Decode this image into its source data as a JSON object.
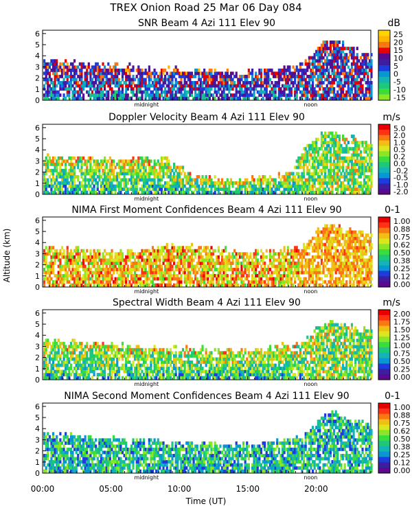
{
  "figure": {
    "header": "TREX Onion Road  25 Mar 06 Day 084",
    "y_axis_label": "Altitude (km)",
    "x_axis_label": "Time (UT)",
    "x_ticks": [
      "00:00",
      "05:00",
      "10:00",
      "15:00",
      "20:00"
    ],
    "midnight_label": "midnight",
    "noon_label": "noon"
  },
  "colors": {
    "panel_palette": [
      "#5a0a8c",
      "#3c1ea0",
      "#1e3cdc",
      "#0a96d2",
      "#14b4b4",
      "#1ec878",
      "#3cdc3c",
      "#8ce628",
      "#dce61e",
      "#f0be14",
      "#fa7814",
      "#ff3214",
      "#e60000"
    ],
    "snr_palette": [
      "#8ce628",
      "#3cdc3c",
      "#1ec878",
      "#14b4b4",
      "#0a96d2",
      "#1e3cdc",
      "#3c1ea0",
      "#5a0a8c",
      "#e60000",
      "#fa7814",
      "#ffb400",
      "#ffd200"
    ]
  },
  "chart_data": [
    {
      "type": "heatmap",
      "title": "SNR Beam 4 Azi 111 Elev 90",
      "unit": "dB",
      "xlabel": "Time (UT)",
      "ylabel": "Altitude (km)",
      "xlim": [
        0,
        24
      ],
      "ylim": [
        0,
        6.3
      ],
      "y_ticks": [
        "0",
        "1",
        "2",
        "3",
        "4",
        "5",
        "6"
      ],
      "colorbar_ticks": [
        "25",
        "20",
        "15",
        "10",
        "5",
        "0",
        "-5",
        "-10",
        "-15"
      ],
      "layer_top_km": [
        [
          0,
          3.4
        ],
        [
          5,
          3.0
        ],
        [
          10,
          2.6
        ],
        [
          15,
          2.4
        ],
        [
          19,
          3.0
        ],
        [
          20,
          4.5
        ],
        [
          21,
          5.5
        ],
        [
          24,
          4.0
        ]
      ]
    },
    {
      "type": "heatmap",
      "title": "Doppler Velocity Beam 4 Azi 111 Elev 90",
      "unit": "m/s",
      "xlabel": "Time (UT)",
      "ylabel": "Altitude (km)",
      "xlim": [
        0,
        24
      ],
      "ylim": [
        0,
        6.3
      ],
      "y_ticks": [
        "0",
        "1",
        "2",
        "3",
        "4",
        "5",
        "6"
      ],
      "colorbar_ticks": [
        "5.0",
        "2.0",
        "1.0",
        "0.5",
        "0.2",
        "0.0",
        "-0.2",
        "-0.5",
        "-1.0",
        "-2.0"
      ],
      "layer_top_km": [
        [
          0,
          3.3
        ],
        [
          5,
          3.0
        ],
        [
          9,
          3.2
        ],
        [
          11,
          1.5
        ],
        [
          15,
          1.2
        ],
        [
          18,
          1.8
        ],
        [
          19,
          4.0
        ],
        [
          20,
          5.0
        ],
        [
          21,
          5.5
        ],
        [
          24,
          4.5
        ]
      ]
    },
    {
      "type": "heatmap",
      "title": "NIMA First Moment Confidences Beam 4 Azi 111 Elev 90",
      "unit": "0-1",
      "xlabel": "Time (UT)",
      "ylabel": "Altitude (km)",
      "xlim": [
        0,
        24
      ],
      "ylim": [
        0,
        6.3
      ],
      "y_ticks": [
        "0",
        "1",
        "2",
        "3",
        "4",
        "5",
        "6"
      ],
      "colorbar_ticks": [
        "1.00",
        "0.88",
        "0.75",
        "0.62",
        "0.50",
        "0.38",
        "0.25",
        "0.12",
        "0.00"
      ],
      "layer_top_km": [
        [
          0,
          3.4
        ],
        [
          5,
          3.1
        ],
        [
          10,
          3.6
        ],
        [
          15,
          3.0
        ],
        [
          19,
          3.5
        ],
        [
          20,
          5.0
        ],
        [
          21,
          5.6
        ],
        [
          24,
          4.5
        ]
      ]
    },
    {
      "type": "heatmap",
      "title": "Spectral Width Beam 4 Azi 111 Elev 90",
      "unit": "m/s",
      "xlabel": "Time (UT)",
      "ylabel": "Altitude (km)",
      "xlim": [
        0,
        24
      ],
      "ylim": [
        0,
        6.3
      ],
      "y_ticks": [
        "0",
        "1",
        "2",
        "3",
        "4",
        "5",
        "6"
      ],
      "colorbar_ticks": [
        "2.00",
        "1.75",
        "1.50",
        "1.25",
        "1.00",
        "0.75",
        "0.50",
        "0.25",
        "0.00"
      ],
      "layer_top_km": [
        [
          0,
          3.4
        ],
        [
          5,
          3.0
        ],
        [
          10,
          2.7
        ],
        [
          15,
          2.5
        ],
        [
          19,
          3.2
        ],
        [
          20,
          4.5
        ],
        [
          21,
          5.0
        ],
        [
          24,
          4.2
        ]
      ]
    },
    {
      "type": "heatmap",
      "title": "NIMA Second Moment Confidences Beam 4 Azi 111 Elev 90",
      "unit": "0-1",
      "xlabel": "Time (UT)",
      "ylabel": "Altitude (km)",
      "xlim": [
        0,
        24
      ],
      "ylim": [
        0,
        6.3
      ],
      "y_ticks": [
        "0",
        "1",
        "2",
        "3",
        "4",
        "5",
        "6"
      ],
      "colorbar_ticks": [
        "1.00",
        "0.88",
        "0.75",
        "0.62",
        "0.50",
        "0.38",
        "0.25",
        "0.12",
        "0.00"
      ],
      "layer_top_km": [
        [
          0,
          3.4
        ],
        [
          5,
          3.0
        ],
        [
          10,
          2.6
        ],
        [
          15,
          2.4
        ],
        [
          19,
          3.0
        ],
        [
          20,
          4.5
        ],
        [
          21,
          5.4
        ],
        [
          24,
          4.2
        ]
      ]
    }
  ]
}
